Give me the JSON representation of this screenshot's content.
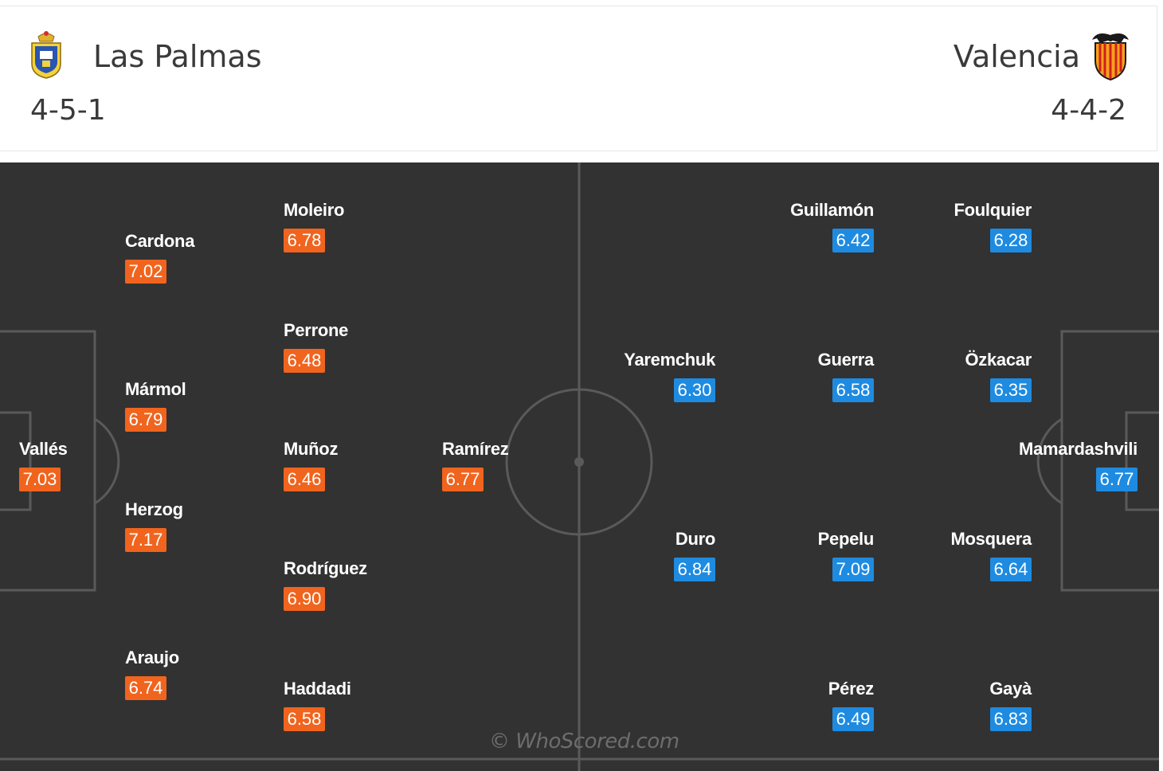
{
  "header": {
    "home": {
      "name": "Las Palmas",
      "formation": "4-5-1",
      "crest_icon": "las-palmas-crest-icon"
    },
    "away": {
      "name": "Valencia",
      "formation": "4-4-2",
      "crest_icon": "valencia-bat-crest-icon"
    }
  },
  "colors": {
    "home_rating": "#f0641e",
    "away_rating": "#1e8be1",
    "pitch": "#323232",
    "lines": "#5a5a5a"
  },
  "home_players": [
    {
      "name": "Vallés",
      "rating": "7.03"
    },
    {
      "name": "Cardona",
      "rating": "7.02"
    },
    {
      "name": "Mármol",
      "rating": "6.79"
    },
    {
      "name": "Herzog",
      "rating": "7.17"
    },
    {
      "name": "Araujo",
      "rating": "6.74"
    },
    {
      "name": "Moleiro",
      "rating": "6.78"
    },
    {
      "name": "Perrone",
      "rating": "6.48"
    },
    {
      "name": "Muñoz",
      "rating": "6.46"
    },
    {
      "name": "Rodríguez",
      "rating": "6.90"
    },
    {
      "name": "Haddadi",
      "rating": "6.58"
    },
    {
      "name": "Ramírez",
      "rating": "6.77"
    }
  ],
  "away_players": [
    {
      "name": "Guillamón",
      "rating": "6.42"
    },
    {
      "name": "Foulquier",
      "rating": "6.28"
    },
    {
      "name": "Yaremchuk",
      "rating": "6.30"
    },
    {
      "name": "Guerra",
      "rating": "6.58"
    },
    {
      "name": "Özkacar",
      "rating": "6.35"
    },
    {
      "name": "Mamardashvili",
      "rating": "6.77"
    },
    {
      "name": "Duro",
      "rating": "6.84"
    },
    {
      "name": "Pepelu",
      "rating": "7.09"
    },
    {
      "name": "Mosquera",
      "rating": "6.64"
    },
    {
      "name": "Pérez",
      "rating": "6.49"
    },
    {
      "name": "Gayà",
      "rating": "6.83"
    }
  ],
  "watermark": "© WhoScored.com"
}
